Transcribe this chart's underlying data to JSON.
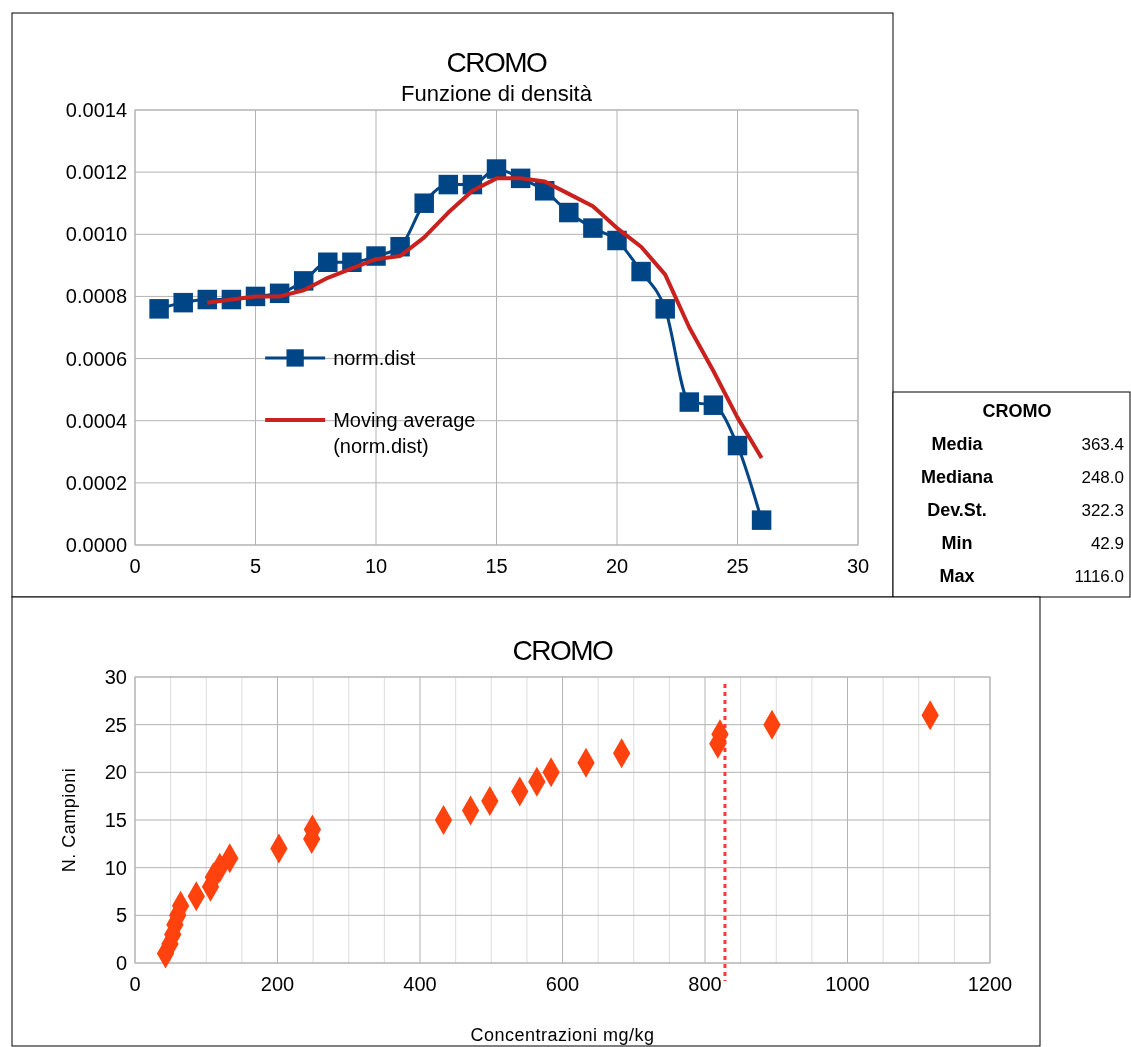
{
  "chart_data": [
    {
      "type": "line",
      "title": "CROMO",
      "subtitle": "Funzione di densità",
      "xlim": [
        0,
        30
      ],
      "xticks": [
        0,
        5,
        10,
        15,
        20,
        25,
        30
      ],
      "ylim": [
        0,
        0.0014
      ],
      "yticks": [
        {
          "value": 0,
          "label": "0.0000"
        },
        {
          "value": 0.0002,
          "label": "0.0002"
        },
        {
          "value": 0.0004,
          "label": "0.0004"
        },
        {
          "value": 0.0006,
          "label": "0.0006"
        },
        {
          "value": 0.0008,
          "label": "0.0008"
        },
        {
          "value": 0.001,
          "label": "0.0010"
        },
        {
          "value": 0.0012,
          "label": "0.0012"
        },
        {
          "value": 0.0014,
          "label": "0.0014"
        }
      ],
      "grid": true,
      "legend": "center",
      "series": [
        {
          "name": "norm.dist",
          "color": "#004586",
          "marker": "square",
          "x": [
            1,
            2,
            3,
            4,
            5,
            6,
            7,
            8,
            9,
            10,
            11,
            12,
            13,
            14,
            15,
            16,
            17,
            18,
            19,
            20,
            21,
            22,
            23,
            24,
            25,
            26
          ],
          "values": [
            0.00076,
            0.00078,
            0.00079,
            0.00079,
            0.0008,
            0.00081,
            0.00085,
            0.00091,
            0.00091,
            0.00093,
            0.00096,
            0.0011,
            0.00116,
            0.00116,
            0.00121,
            0.00118,
            0.00114,
            0.00107,
            0.00102,
            0.00098,
            0.00088,
            0.00076,
            0.00046,
            0.00045,
            0.00032,
            8e-05
          ]
        },
        {
          "name": "Moving average (norm.dist)",
          "color": "#c9211e",
          "marker": "none",
          "x": [
            3,
            4,
            5,
            6,
            7,
            8,
            9,
            10,
            11,
            12,
            13,
            14,
            15,
            16,
            17,
            18,
            19,
            20,
            21,
            22,
            23,
            24,
            25,
            26
          ],
          "values": [
            0.00078,
            0.00079,
            0.0008,
            0.0008,
            0.00082,
            0.00086,
            0.00089,
            0.00092,
            0.00093,
            0.00099,
            0.00107,
            0.00114,
            0.00118,
            0.00118,
            0.00117,
            0.00113,
            0.00109,
            0.00102,
            0.00096,
            0.00087,
            0.0007,
            0.00056,
            0.00041,
            0.00028
          ]
        }
      ]
    },
    {
      "type": "other",
      "title": "CROMO",
      "annotations": [
        "Media",
        "363.4",
        "Mediana",
        "248.0",
        "Dev.St.",
        "322.3",
        "Min",
        "42.9",
        "Max",
        "1116.0"
      ]
    },
    {
      "type": "scatter",
      "title": "CROMO",
      "xlabel": "Concentrazioni mg/kg",
      "ylabel": "N. Campioni",
      "xlim": [
        0,
        1200
      ],
      "xticks": [
        0,
        {
          "value": 50,
          "label": null
        },
        {
          "value": 100,
          "label": null
        },
        {
          "value": 150,
          "label": null
        },
        200,
        {
          "value": 250,
          "label": null
        },
        {
          "value": 300,
          "label": null
        },
        {
          "value": 350,
          "label": null
        },
        400,
        {
          "value": 450,
          "label": null
        },
        {
          "value": 500,
          "label": null
        },
        {
          "value": 550,
          "label": null
        },
        600,
        {
          "value": 650,
          "label": null
        },
        {
          "value": 700,
          "label": null
        },
        {
          "value": 750,
          "label": null
        },
        800,
        {
          "value": 850,
          "label": null
        },
        {
          "value": 900,
          "label": null
        },
        {
          "value": 950,
          "label": null
        },
        1000,
        {
          "value": 1050,
          "label": null
        },
        {
          "value": 1100,
          "label": null
        },
        {
          "value": 1150,
          "label": null
        },
        1200
      ],
      "ylim": [
        0,
        30
      ],
      "yticks": [
        0,
        5,
        10,
        15,
        20,
        25,
        30
      ],
      "grid": true,
      "marker": "diamond",
      "series": [
        {
          "color": "#ff420e",
          "x": [
            42.9,
            49,
            53,
            56,
            60,
            64,
            86,
            106,
            110,
            119,
            133,
            202,
            248,
            249,
            433,
            471,
            498,
            540,
            564,
            584,
            633,
            683,
            818,
            821,
            894,
            1116
          ],
          "values": [
            1,
            2,
            3,
            4,
            5,
            6,
            7,
            8,
            9,
            10,
            11,
            12,
            13,
            14,
            15,
            16,
            17,
            18,
            19,
            20,
            21,
            22,
            23,
            24,
            25,
            26
          ]
        }
      ],
      "ref_lines": [
        {
          "axis": "x",
          "value": 828,
          "color": "#ff3838",
          "line_style": "dotted"
        }
      ]
    }
  ]
}
